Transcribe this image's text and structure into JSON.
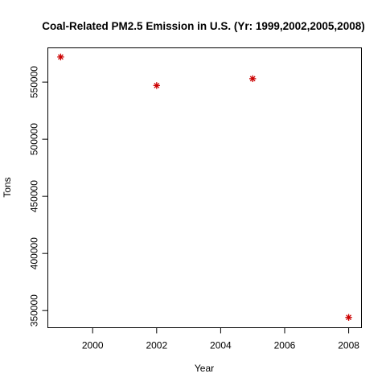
{
  "chart_data": {
    "type": "scatter",
    "title": "Coal-Related PM2.5 Emission in U.S. (Yr: 1999,2002,2005,2008)",
    "xlabel": "Year",
    "ylabel": "Tons",
    "x": [
      1999,
      2002,
      2005,
      2008
    ],
    "y": [
      572000,
      547000,
      553000,
      344000
    ],
    "xlim": [
      1998.6,
      2008.4
    ],
    "ylim": [
      335000,
      580000
    ],
    "xticks": [
      2000,
      2002,
      2004,
      2006,
      2008
    ],
    "xtick_labels": [
      "2000",
      "2002",
      "2004",
      "2006",
      "2008"
    ],
    "yticks": [
      350000,
      400000,
      450000,
      500000,
      550000
    ],
    "ytick_labels": [
      "350000",
      "400000",
      "450000",
      "500000",
      "550000"
    ],
    "marker": "asterisk",
    "marker_color": "#cc0000",
    "grid": false,
    "legend": "none"
  }
}
